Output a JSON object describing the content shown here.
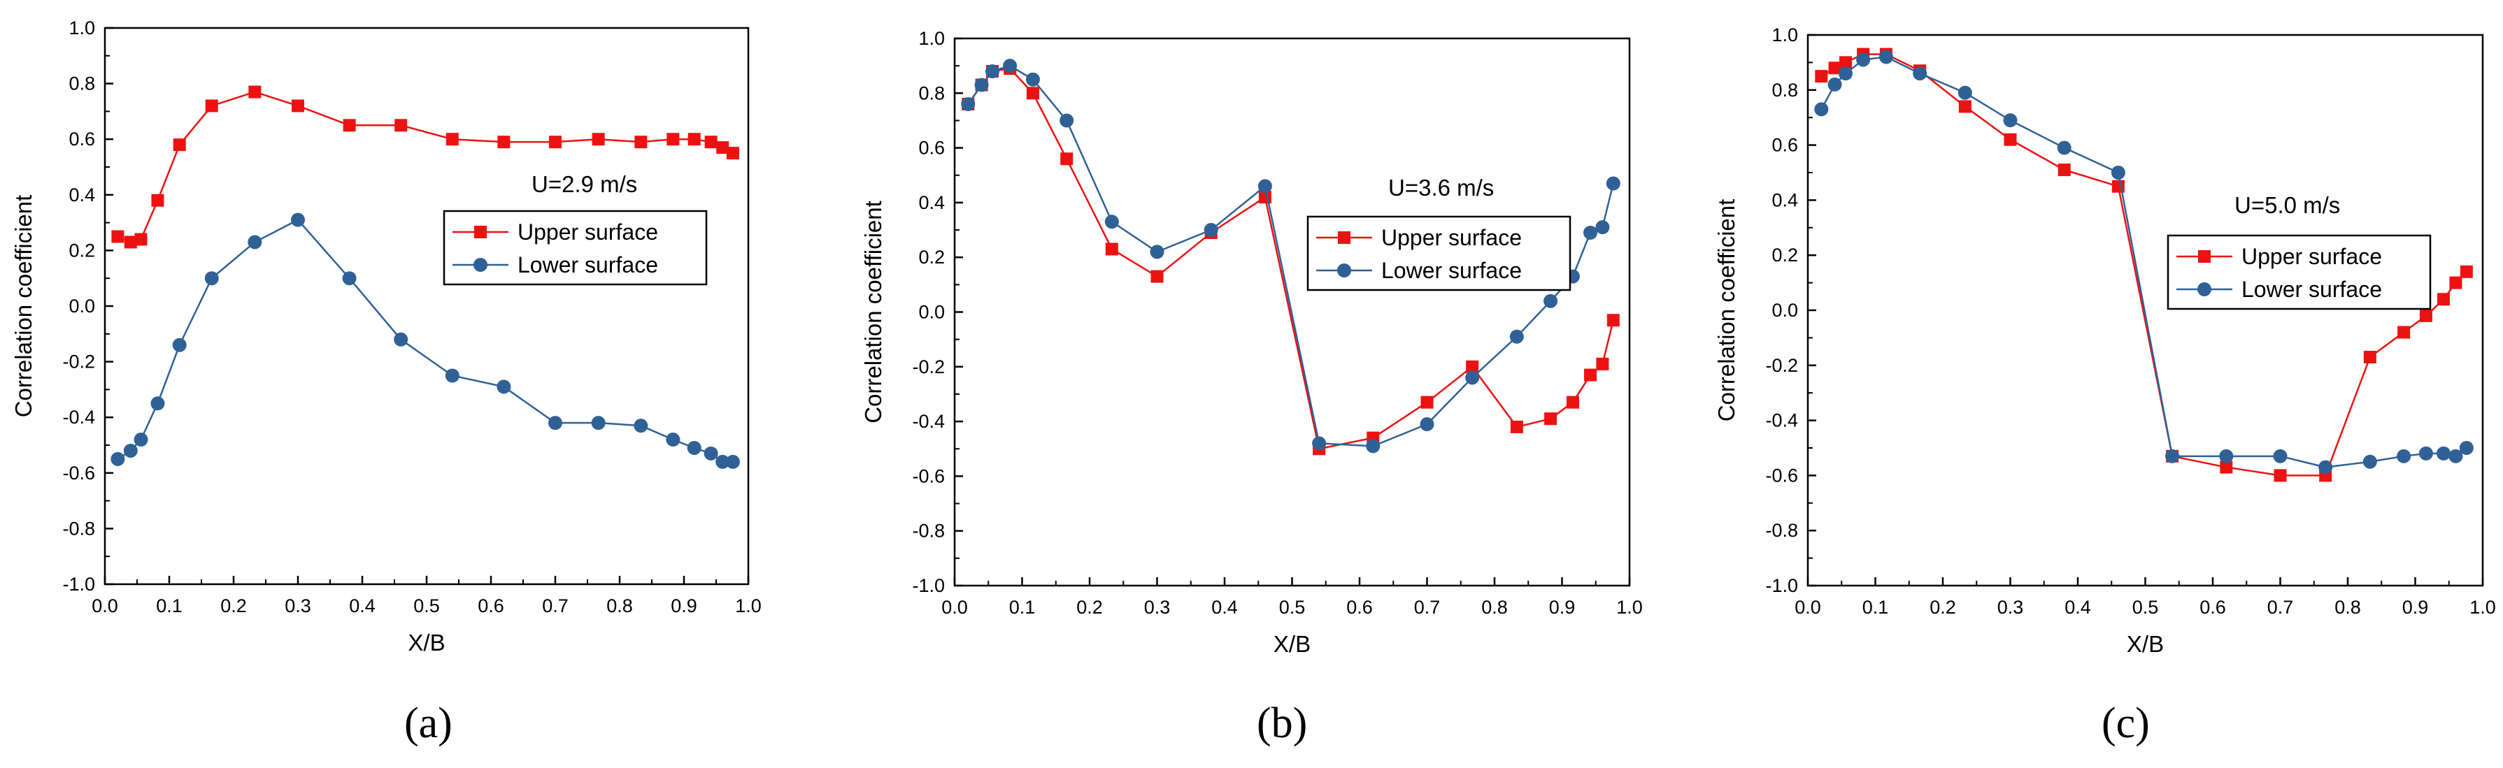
{
  "figure": {
    "panel_labels": [
      "(a)",
      "(b)",
      "(c)"
    ]
  },
  "colors": {
    "upper": "#ee1111",
    "lower": "#2f6196",
    "axis": "#000000",
    "background": "#ffffff"
  },
  "chart_data": [
    {
      "type": "line",
      "annotation": "U=2.9 m/s",
      "xlabel": "X/B",
      "ylabel": "Correlation coefficient",
      "xlim": [
        0,
        1.0
      ],
      "ylim": [
        -1.0,
        1.0
      ],
      "xticks": [
        "0.0",
        "0.1",
        "0.2",
        "0.3",
        "0.4",
        "0.5",
        "0.6",
        "0.7",
        "0.8",
        "0.9",
        "1.0"
      ],
      "yticks": [
        "-1.0",
        "-0.8",
        "-0.6",
        "-0.4",
        "-0.2",
        "0.0",
        "0.2",
        "0.4",
        "0.6",
        "0.8",
        "1.0"
      ],
      "grid": false,
      "legend": "center-right",
      "series": [
        {
          "name": "Upper surface",
          "marker": "square",
          "color": "#ee1111",
          "x": [
            0.02,
            0.04,
            0.056,
            0.082,
            0.116,
            0.166,
            0.233,
            0.3,
            0.38,
            0.46,
            0.54,
            0.62,
            0.7,
            0.767,
            0.833,
            0.883,
            0.916,
            0.942,
            0.96,
            0.976
          ],
          "y": [
            0.25,
            0.23,
            0.24,
            0.38,
            0.58,
            0.72,
            0.77,
            0.72,
            0.65,
            0.65,
            0.6,
            0.59,
            0.59,
            0.6,
            0.59,
            0.6,
            0.6,
            0.59,
            0.57,
            0.55
          ]
        },
        {
          "name": "Lower surface",
          "marker": "circle",
          "color": "#2f6196",
          "x": [
            0.02,
            0.04,
            0.056,
            0.082,
            0.116,
            0.166,
            0.233,
            0.3,
            0.38,
            0.46,
            0.54,
            0.62,
            0.7,
            0.767,
            0.833,
            0.883,
            0.916,
            0.942,
            0.96,
            0.976
          ],
          "y": [
            -0.55,
            -0.52,
            -0.48,
            -0.35,
            -0.14,
            0.1,
            0.23,
            0.31,
            0.1,
            -0.12,
            -0.25,
            -0.29,
            -0.42,
            -0.42,
            -0.43,
            -0.48,
            -0.51,
            -0.53,
            -0.56,
            -0.56
          ]
        }
      ]
    },
    {
      "type": "line",
      "annotation": "U=3.6 m/s",
      "xlabel": "X/B",
      "ylabel": "Correlation coefficient",
      "xlim": [
        0,
        1.0
      ],
      "ylim": [
        -1.0,
        1.0
      ],
      "xticks": [
        "0.0",
        "0.1",
        "0.2",
        "0.3",
        "0.4",
        "0.5",
        "0.6",
        "0.7",
        "0.8",
        "0.9",
        "1.0"
      ],
      "yticks": [
        "-1.0",
        "-0.8",
        "-0.6",
        "-0.4",
        "-0.2",
        "0.0",
        "0.2",
        "0.4",
        "0.6",
        "0.8",
        "1.0"
      ],
      "grid": false,
      "legend": "center-right",
      "series": [
        {
          "name": "Upper surface",
          "marker": "square",
          "color": "#ee1111",
          "x": [
            0.02,
            0.04,
            0.056,
            0.082,
            0.116,
            0.166,
            0.233,
            0.3,
            0.38,
            0.46,
            0.54,
            0.62,
            0.7,
            0.767,
            0.833,
            0.883,
            0.916,
            0.942,
            0.96,
            0.976
          ],
          "y": [
            0.76,
            0.83,
            0.88,
            0.89,
            0.8,
            0.56,
            0.23,
            0.13,
            0.29,
            0.42,
            -0.5,
            -0.46,
            -0.33,
            -0.2,
            -0.42,
            -0.39,
            -0.33,
            -0.23,
            -0.19,
            -0.03
          ]
        },
        {
          "name": "Lower surface",
          "marker": "circle",
          "color": "#2f6196",
          "x": [
            0.02,
            0.04,
            0.056,
            0.082,
            0.116,
            0.166,
            0.233,
            0.3,
            0.38,
            0.46,
            0.54,
            0.62,
            0.7,
            0.767,
            0.833,
            0.883,
            0.916,
            0.942,
            0.96,
            0.976
          ],
          "y": [
            0.76,
            0.83,
            0.88,
            0.9,
            0.85,
            0.7,
            0.33,
            0.22,
            0.3,
            0.46,
            -0.48,
            -0.49,
            -0.41,
            -0.24,
            -0.09,
            0.04,
            0.13,
            0.29,
            0.31,
            0.47
          ]
        }
      ]
    },
    {
      "type": "line",
      "annotation": "U=5.0 m/s",
      "xlabel": "X/B",
      "ylabel": "Correlation coefficient",
      "xlim": [
        0,
        1.0
      ],
      "ylim": [
        -1.0,
        1.0
      ],
      "xticks": [
        "0.0",
        "0.1",
        "0.2",
        "0.3",
        "0.4",
        "0.5",
        "0.6",
        "0.7",
        "0.8",
        "0.9",
        "1.0"
      ],
      "yticks": [
        "-1.0",
        "-0.8",
        "-0.6",
        "-0.4",
        "-0.2",
        "0.0",
        "0.2",
        "0.4",
        "0.6",
        "0.8",
        "1.0"
      ],
      "grid": false,
      "legend": "center-right",
      "series": [
        {
          "name": "Upper surface",
          "marker": "square",
          "color": "#ee1111",
          "x": [
            0.02,
            0.04,
            0.056,
            0.082,
            0.116,
            0.166,
            0.233,
            0.3,
            0.38,
            0.46,
            0.54,
            0.62,
            0.7,
            0.767,
            0.833,
            0.883,
            0.916,
            0.942,
            0.96,
            0.976
          ],
          "y": [
            0.85,
            0.88,
            0.9,
            0.93,
            0.93,
            0.87,
            0.74,
            0.62,
            0.51,
            0.45,
            -0.53,
            -0.57,
            -0.6,
            -0.6,
            -0.17,
            -0.08,
            -0.02,
            0.04,
            0.1,
            0.14
          ]
        },
        {
          "name": "Lower surface",
          "marker": "circle",
          "color": "#2f6196",
          "x": [
            0.02,
            0.04,
            0.056,
            0.082,
            0.116,
            0.166,
            0.233,
            0.3,
            0.38,
            0.46,
            0.54,
            0.62,
            0.7,
            0.767,
            0.833,
            0.883,
            0.916,
            0.942,
            0.96,
            0.976
          ],
          "y": [
            0.73,
            0.82,
            0.86,
            0.91,
            0.92,
            0.86,
            0.79,
            0.69,
            0.59,
            0.5,
            -0.53,
            -0.53,
            -0.53,
            -0.57,
            -0.55,
            -0.53,
            -0.52,
            -0.52,
            -0.53,
            -0.5
          ]
        }
      ]
    }
  ]
}
